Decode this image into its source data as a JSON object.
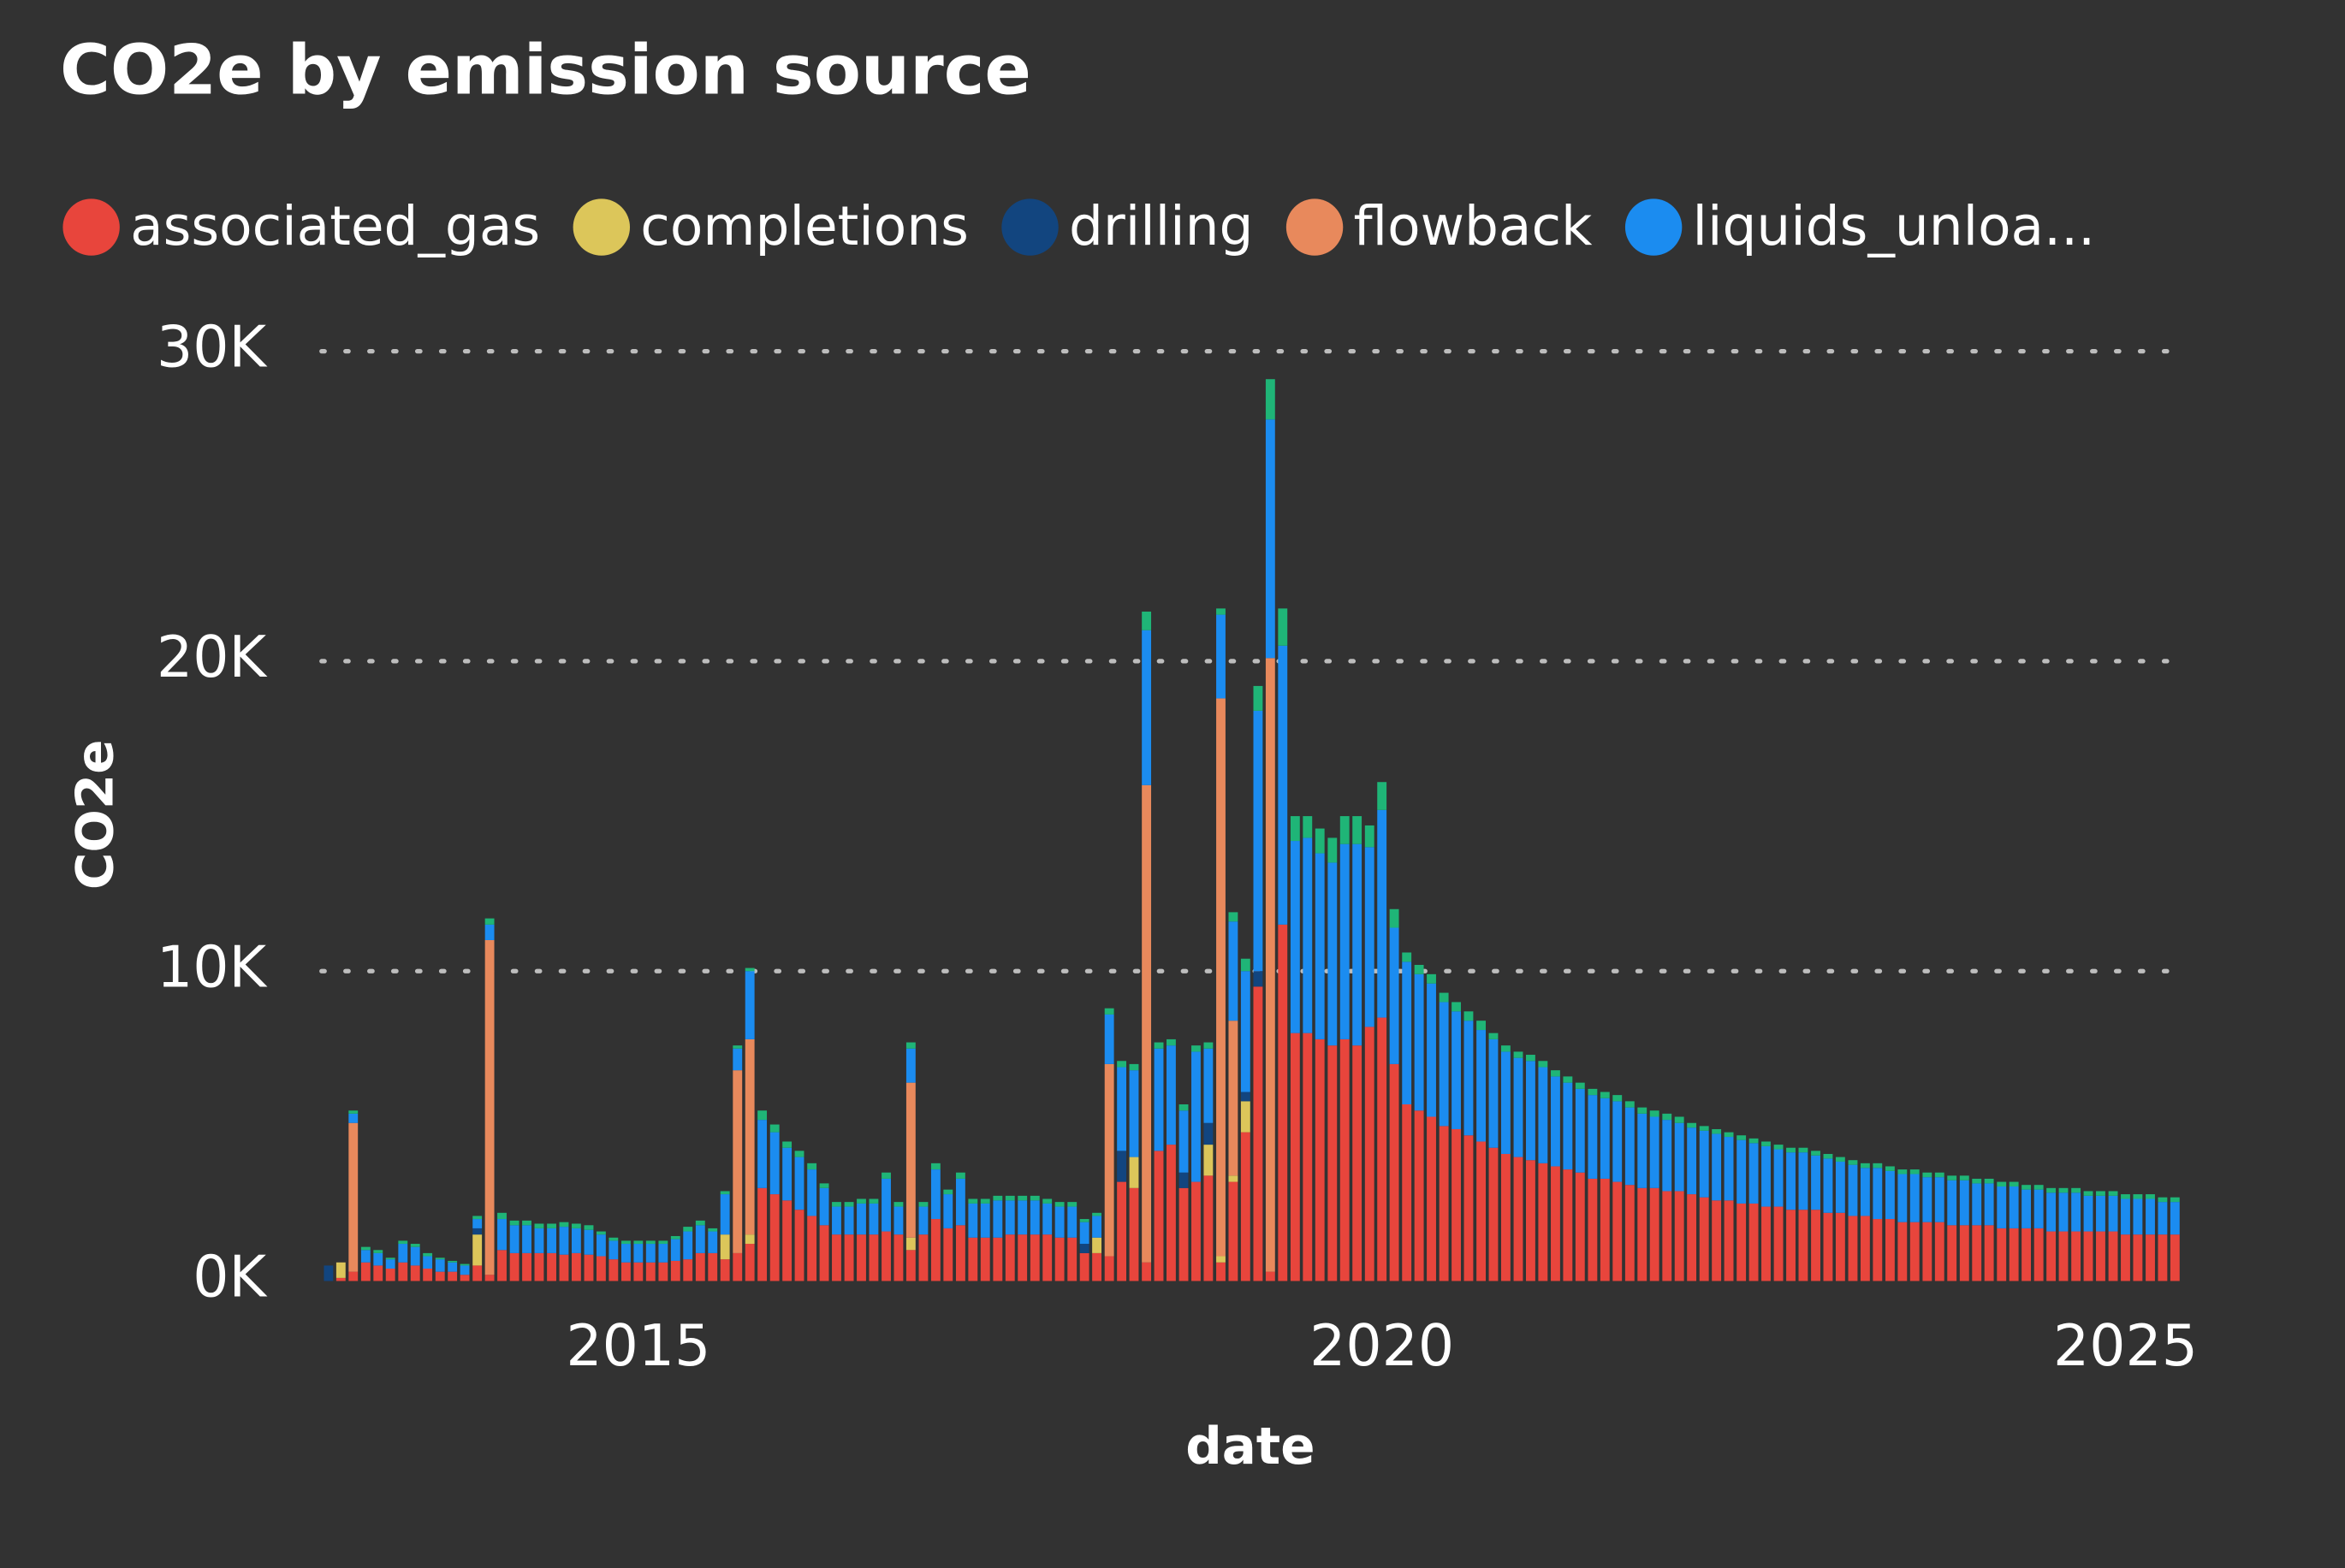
{
  "chart_data": {
    "type": "stacked_bar",
    "title": "CO2e by emission source",
    "x_label": "date",
    "y_label": "CO2e",
    "xlim": [
      2012.87,
      2025.41
    ],
    "xticks": [
      2015,
      2020,
      2025
    ],
    "ylim": [
      0,
      30000
    ],
    "yticks": [
      {
        "value": 0,
        "label": "0K"
      },
      {
        "value": 10000,
        "label": "10K"
      },
      {
        "value": 20000,
        "label": "20K"
      },
      {
        "value": 30000,
        "label": "30K"
      }
    ],
    "grid": true,
    "legend": "top",
    "x": [
      2012.917,
      2013.0,
      2013.083,
      2013.167,
      2013.25,
      2013.333,
      2013.417,
      2013.5,
      2013.583,
      2013.667,
      2013.75,
      2013.833,
      2013.917,
      2014.0,
      2014.083,
      2014.167,
      2014.25,
      2014.333,
      2014.417,
      2014.5,
      2014.583,
      2014.667,
      2014.75,
      2014.833,
      2014.917,
      2015.0,
      2015.083,
      2015.167,
      2015.25,
      2015.333,
      2015.417,
      2015.5,
      2015.583,
      2015.667,
      2015.75,
      2015.833,
      2015.917,
      2016.0,
      2016.083,
      2016.167,
      2016.25,
      2016.333,
      2016.417,
      2016.5,
      2016.583,
      2016.667,
      2016.75,
      2016.833,
      2016.917,
      2017.0,
      2017.083,
      2017.167,
      2017.25,
      2017.333,
      2017.417,
      2017.5,
      2017.583,
      2017.667,
      2017.75,
      2017.833,
      2017.917,
      2018.0,
      2018.083,
      2018.167,
      2018.25,
      2018.333,
      2018.417,
      2018.5,
      2018.583,
      2018.667,
      2018.75,
      2018.833,
      2018.917,
      2019.0,
      2019.083,
      2019.167,
      2019.25,
      2019.333,
      2019.417,
      2019.5,
      2019.583,
      2019.667,
      2019.75,
      2019.833,
      2019.917,
      2020.0,
      2020.083,
      2020.167,
      2020.25,
      2020.333,
      2020.417,
      2020.5,
      2020.583,
      2020.667,
      2020.75,
      2020.833,
      2020.917,
      2021.0,
      2021.083,
      2021.167,
      2021.25,
      2021.333,
      2021.417,
      2021.5,
      2021.583,
      2021.667,
      2021.75,
      2021.833,
      2021.917,
      2022.0,
      2022.083,
      2022.167,
      2022.25,
      2022.333,
      2022.417,
      2022.5,
      2022.583,
      2022.667,
      2022.75,
      2022.833,
      2022.917,
      2023.0,
      2023.083,
      2023.167,
      2023.25,
      2023.333,
      2023.417,
      2023.5,
      2023.583,
      2023.667,
      2023.75,
      2023.833,
      2023.917,
      2024.0,
      2024.083,
      2024.167,
      2024.25,
      2024.333,
      2024.417,
      2024.5,
      2024.583,
      2024.667,
      2024.75,
      2024.833,
      2024.917,
      2025.0,
      2025.083,
      2025.167,
      2025.25,
      2025.333
    ],
    "series": [
      {
        "name": "associated_gas",
        "color": "#e8453c",
        "values": [
          0,
          100,
          300,
          600,
          500,
          400,
          600,
          500,
          400,
          300,
          300,
          200,
          500,
          200,
          1000,
          900,
          900,
          900,
          900,
          850,
          900,
          850,
          800,
          700,
          600,
          600,
          600,
          600,
          650,
          700,
          900,
          900,
          700,
          900,
          1200,
          3000,
          2800,
          2600,
          2300,
          2100,
          1800,
          1500,
          1500,
          1500,
          1500,
          1600,
          1500,
          1000,
          1500,
          2000,
          1700,
          1800,
          1400,
          1400,
          1400,
          1500,
          1500,
          1500,
          1500,
          1400,
          1400,
          900,
          900,
          800,
          3200,
          3000,
          600,
          4200,
          4400,
          3000,
          3200,
          3400,
          600,
          3200,
          4800,
          9500,
          300,
          11500,
          8000,
          8000,
          7800,
          7600,
          7800,
          7600,
          8200,
          8500,
          7000,
          5700,
          5500,
          5300,
          5000,
          4900,
          4700,
          4500,
          4300,
          4100,
          4000,
          3900,
          3800,
          3700,
          3600,
          3500,
          3300,
          3300,
          3200,
          3100,
          3000,
          3000,
          2900,
          2900,
          2800,
          2700,
          2600,
          2600,
          2500,
          2500,
          2400,
          2400,
          2300,
          2300,
          2300,
          2200,
          2200,
          2100,
          2100,
          2000,
          2000,
          1900,
          1900,
          1900,
          1900,
          1800,
          1800,
          1800,
          1800,
          1700,
          1700,
          1700,
          1700,
          1600,
          1600,
          1600,
          1600,
          1600,
          1600,
          1500,
          1500,
          1500,
          1500,
          1500
        ]
      },
      {
        "name": "completions",
        "color": "#dcc65a",
        "values": [
          0,
          500,
          0,
          0,
          0,
          0,
          0,
          0,
          0,
          0,
          0,
          0,
          1000,
          0,
          0,
          0,
          0,
          0,
          0,
          0,
          0,
          0,
          0,
          0,
          0,
          0,
          0,
          0,
          0,
          0,
          0,
          0,
          800,
          0,
          300,
          0,
          0,
          0,
          0,
          0,
          0,
          0,
          0,
          0,
          0,
          0,
          0,
          400,
          0,
          0,
          0,
          0,
          0,
          0,
          0,
          0,
          0,
          0,
          0,
          0,
          0,
          0,
          500,
          0,
          0,
          1000,
          0,
          0,
          0,
          0,
          0,
          1000,
          200,
          200,
          1000,
          0,
          0,
          0,
          0,
          0,
          0,
          0,
          0,
          0,
          0,
          0,
          0,
          0,
          0,
          0,
          0,
          0,
          0,
          0,
          0,
          0,
          0,
          0,
          0,
          0,
          0,
          0,
          0,
          0,
          0,
          0,
          0,
          0,
          0,
          0,
          0,
          0,
          0,
          0,
          0,
          0,
          0,
          0,
          0,
          0,
          0,
          0,
          0,
          0,
          0,
          0,
          0,
          0,
          0,
          0,
          0,
          0,
          0,
          0,
          0,
          0,
          0,
          0,
          0,
          0,
          0,
          0,
          0,
          0,
          0,
          0,
          0,
          0,
          0,
          0
        ]
      },
      {
        "name": "drilling",
        "color": "#12457f",
        "values": [
          500,
          0,
          0,
          0,
          0,
          0,
          0,
          0,
          0,
          0,
          0,
          0,
          200,
          0,
          0,
          0,
          0,
          0,
          0,
          0,
          0,
          0,
          0,
          0,
          0,
          0,
          0,
          0,
          0,
          0,
          0,
          0,
          0,
          0,
          0,
          0,
          0,
          0,
          0,
          0,
          0,
          0,
          0,
          0,
          0,
          0,
          0,
          0,
          0,
          0,
          0,
          0,
          0,
          0,
          0,
          0,
          0,
          0,
          0,
          0,
          0,
          300,
          0,
          0,
          1000,
          0,
          0,
          0,
          0,
          500,
          0,
          700,
          0,
          0,
          300,
          500,
          0,
          0,
          0,
          0,
          0,
          0,
          0,
          0,
          0,
          0,
          0,
          0,
          0,
          0,
          0,
          0,
          0,
          0,
          0,
          0,
          0,
          0,
          0,
          0,
          0,
          0,
          0,
          0,
          0,
          0,
          0,
          0,
          0,
          0,
          0,
          0,
          0,
          0,
          0,
          0,
          0,
          0,
          0,
          0,
          0,
          0,
          0,
          0,
          0,
          0,
          0,
          0,
          0,
          0,
          0,
          0,
          0,
          0,
          0,
          0,
          0,
          0,
          0,
          0,
          0,
          0,
          0,
          0,
          0,
          0,
          0,
          0,
          0,
          0
        ]
      },
      {
        "name": "flowback",
        "color": "#e8895c",
        "values": [
          0,
          0,
          4800,
          0,
          0,
          0,
          0,
          0,
          0,
          0,
          0,
          0,
          0,
          10800,
          0,
          0,
          0,
          0,
          0,
          0,
          0,
          0,
          0,
          0,
          0,
          0,
          0,
          0,
          0,
          0,
          0,
          0,
          0,
          5900,
          6300,
          0,
          0,
          0,
          0,
          0,
          0,
          0,
          0,
          0,
          0,
          0,
          0,
          5000,
          0,
          0,
          0,
          0,
          0,
          0,
          0,
          0,
          0,
          0,
          0,
          0,
          0,
          0,
          0,
          6200,
          0,
          0,
          15400,
          0,
          0,
          0,
          0,
          0,
          18000,
          5000,
          0,
          0,
          19800,
          0,
          0,
          0,
          0,
          0,
          0,
          0,
          0,
          0,
          0,
          0,
          0,
          0,
          0,
          0,
          0,
          0,
          0,
          0,
          0,
          0,
          0,
          0,
          0,
          0,
          0,
          0,
          0,
          0,
          0,
          0,
          0,
          0,
          0,
          0,
          0,
          0,
          0,
          0,
          0,
          0,
          0,
          0,
          0,
          0,
          0,
          0,
          0,
          0,
          0,
          0,
          0,
          0,
          0,
          0,
          0,
          0,
          0,
          0,
          0,
          0,
          0,
          0,
          0,
          0,
          0,
          0,
          0,
          0,
          0,
          0,
          0,
          0
        ]
      },
      {
        "name": "liquids_unloa...",
        "color": "#1b8cf0",
        "values": [
          0,
          0,
          300,
          400,
          400,
          300,
          600,
          600,
          400,
          400,
          300,
          300,
          300,
          500,
          1000,
          900,
          900,
          800,
          800,
          900,
          800,
          800,
          700,
          600,
          600,
          600,
          600,
          600,
          700,
          900,
          900,
          700,
          1300,
          700,
          2200,
          2200,
          2000,
          1700,
          1700,
          1500,
          1200,
          900,
          900,
          1000,
          1000,
          1700,
          900,
          1100,
          900,
          1600,
          1100,
          1500,
          1100,
          1100,
          1200,
          1100,
          1100,
          1100,
          1000,
          1000,
          1000,
          700,
          700,
          1600,
          2700,
          2800,
          5000,
          3300,
          3200,
          2000,
          4200,
          2400,
          2700,
          3200,
          3900,
          8400,
          7700,
          9000,
          6200,
          6300,
          6000,
          5900,
          6300,
          6500,
          5800,
          6700,
          4400,
          4600,
          4400,
          4300,
          4000,
          3800,
          3700,
          3600,
          3500,
          3300,
          3200,
          3200,
          3100,
          2900,
          2800,
          2700,
          2700,
          2600,
          2600,
          2500,
          2400,
          2300,
          2300,
          2200,
          2150,
          2150,
          2150,
          2050,
          2050,
          1950,
          1950,
          1850,
          1850,
          1850,
          1750,
          1750,
          1650,
          1650,
          1550,
          1650,
          1550,
          1550,
          1550,
          1450,
          1450,
          1450,
          1450,
          1350,
          1350,
          1350,
          1350,
          1250,
          1250,
          1250,
          1250,
          1250,
          1150,
          1150,
          1150,
          1150,
          1150,
          1150,
          1050,
          1050
        ]
      },
      {
        "color": "#1fb577",
        "values": [
          0,
          0,
          100,
          100,
          100,
          50,
          100,
          100,
          100,
          50,
          50,
          50,
          100,
          200,
          200,
          150,
          150,
          150,
          150,
          150,
          150,
          150,
          100,
          100,
          100,
          100,
          100,
          100,
          100,
          150,
          150,
          100,
          100,
          100,
          100,
          300,
          250,
          200,
          200,
          200,
          150,
          150,
          150,
          150,
          150,
          200,
          150,
          200,
          150,
          200,
          150,
          200,
          150,
          150,
          150,
          150,
          150,
          150,
          150,
          150,
          150,
          100,
          100,
          200,
          200,
          200,
          600,
          200,
          200,
          200,
          200,
          200,
          200,
          300,
          400,
          800,
          1300,
          1200,
          800,
          700,
          800,
          800,
          900,
          900,
          700,
          900,
          600,
          300,
          300,
          300,
          300,
          300,
          300,
          300,
          200,
          200,
          200,
          200,
          200,
          200,
          200,
          200,
          200,
          200,
          200,
          200,
          200,
          200,
          200,
          200,
          150,
          150,
          150,
          150,
          150,
          150,
          150,
          150,
          150,
          150,
          150,
          150,
          150,
          150,
          150,
          150,
          150,
          150,
          150,
          150,
          150,
          150,
          150,
          150,
          150,
          150,
          150,
          150,
          150,
          150,
          150,
          150,
          150,
          150,
          150,
          150,
          150,
          150,
          150,
          150
        ]
      }
    ]
  }
}
